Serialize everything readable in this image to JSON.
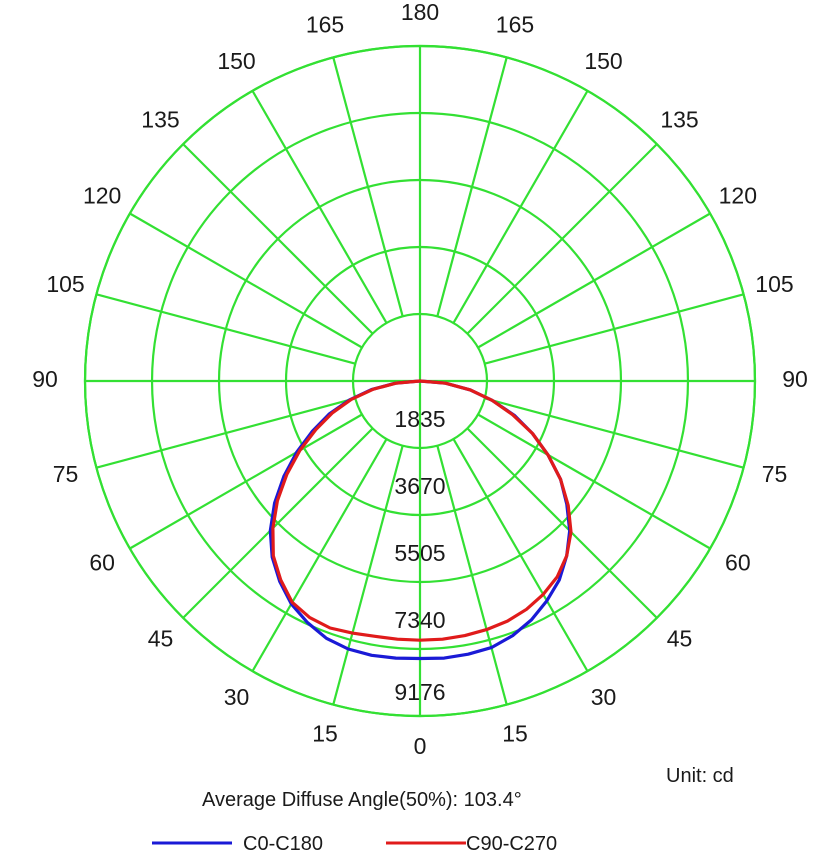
{
  "chart_data": {
    "type": "polar",
    "angle_labels_right": [
      "0",
      "15",
      "30",
      "45",
      "60",
      "75",
      "90",
      "105",
      "120",
      "135",
      "150",
      "165",
      "180"
    ],
    "angle_labels_left": [
      "15",
      "30",
      "45",
      "60",
      "75",
      "90",
      "105",
      "120",
      "135",
      "150",
      "165"
    ],
    "radial_ticks": [
      1835,
      3670,
      5505,
      7340,
      9176
    ],
    "radial_tick_labels": [
      "1835",
      "3670",
      "5505",
      "7340",
      "9176"
    ],
    "rmax": 9176,
    "unit_label": "Unit: cd",
    "caption": "Average Diffuse Angle(50%): 103.4°",
    "series": [
      {
        "name": "C0-C180",
        "color": "#1a1ad6",
        "angles": [
          -90,
          -85,
          -80,
          -75,
          -70,
          -65,
          -60,
          -55,
          -50,
          -45,
          -40,
          -35,
          -30,
          -25,
          -20,
          -15,
          -10,
          -5,
          0,
          5,
          10,
          15,
          20,
          25,
          30,
          35,
          40,
          45,
          50,
          55,
          60,
          65,
          70,
          75,
          80,
          85,
          90
        ],
        "values": [
          0,
          680,
          1350,
          2000,
          2650,
          3250,
          3900,
          4550,
          5200,
          5800,
          6300,
          6700,
          7050,
          7300,
          7500,
          7600,
          7630,
          7620,
          7600,
          7620,
          7600,
          7560,
          7420,
          7220,
          6950,
          6650,
          6250,
          5800,
          5250,
          4700,
          4050,
          3400,
          2750,
          2050,
          1400,
          700,
          0
        ]
      },
      {
        "name": "C90-C270",
        "color": "#e01b1b",
        "angles": [
          -90,
          -85,
          -80,
          -75,
          -70,
          -65,
          -60,
          -55,
          -50,
          -45,
          -40,
          -35,
          -30,
          -25,
          -20,
          -15,
          -10,
          -5,
          0,
          5,
          10,
          15,
          20,
          25,
          30,
          35,
          40,
          45,
          50,
          55,
          60,
          65,
          70,
          75,
          80,
          85,
          90
        ],
        "values": [
          0,
          650,
          1300,
          1950,
          2550,
          3150,
          3800,
          4450,
          5100,
          5700,
          6250,
          6650,
          7000,
          7150,
          7200,
          7150,
          7100,
          7100,
          7100,
          7100,
          7080,
          7050,
          7000,
          6900,
          6750,
          6550,
          6250,
          5850,
          5300,
          4700,
          4050,
          3400,
          2700,
          2050,
          1400,
          700,
          0
        ]
      }
    ]
  }
}
